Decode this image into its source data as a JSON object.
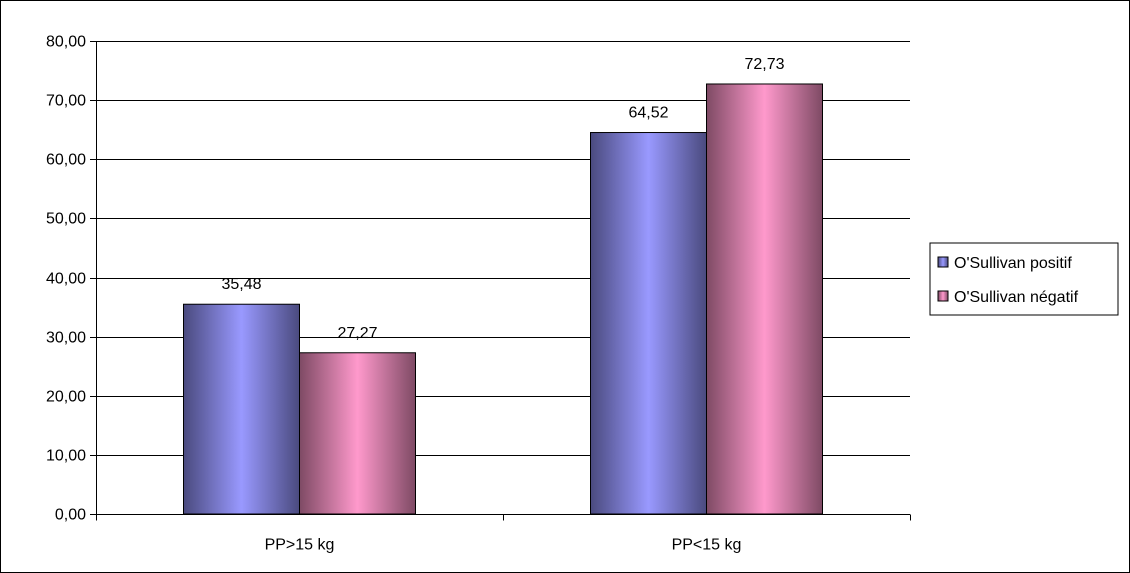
{
  "chart_data": {
    "type": "bar",
    "categories": [
      "PP>15 kg",
      "PP<15 kg"
    ],
    "series": [
      {
        "name": "O'Sullivan positif",
        "values": [
          35.48,
          64.52
        ],
        "labels": [
          "35,48",
          "64,52"
        ],
        "color": "#9999FF"
      },
      {
        "name": "O'Sullivan négatif",
        "values": [
          27.27,
          72.73
        ],
        "labels": [
          "27,27",
          "72,73"
        ],
        "color": "#FF99CC"
      }
    ],
    "ylim": [
      0,
      80
    ],
    "yticks": [
      0,
      10,
      20,
      30,
      40,
      50,
      60,
      70,
      80
    ],
    "ytick_labels": [
      "0,00",
      "10,00",
      "20,00",
      "30,00",
      "40,00",
      "50,00",
      "60,00",
      "70,00",
      "80,00"
    ],
    "grid": true,
    "legend_position": "right",
    "title": "",
    "xlabel": "",
    "ylabel": ""
  }
}
